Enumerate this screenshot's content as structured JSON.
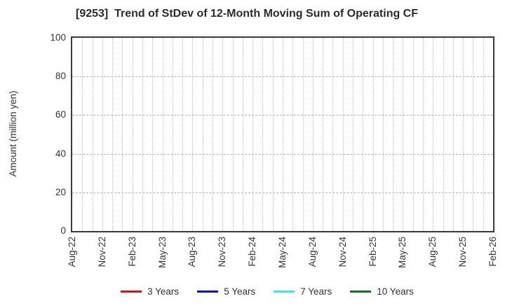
{
  "title": "[9253]  Trend of StDev of 12-Month Moving Sum of Operating CF",
  "y_axis": {
    "label": "Amount (million yen)",
    "ticks": [
      0,
      20,
      40,
      60,
      80,
      100
    ]
  },
  "x_axis": {
    "tick_labels": [
      "Aug-22",
      "Nov-22",
      "Feb-23",
      "May-23",
      "Aug-23",
      "Nov-23",
      "Feb-24",
      "May-24",
      "Aug-24",
      "Nov-24",
      "Feb-25",
      "May-25",
      "Aug-25",
      "Nov-25",
      "Feb-26"
    ]
  },
  "legend": {
    "items": [
      {
        "label": "3 Years",
        "color": "#ff0000"
      },
      {
        "label": "5 Years",
        "color": "#0000ff"
      },
      {
        "label": "7 Years",
        "color": "#00ffff"
      },
      {
        "label": "10 Years",
        "color": "#008000"
      }
    ]
  },
  "chart_data": {
    "type": "line",
    "title": "[9253]  Trend of StDev of 12-Month Moving Sum of Operating CF",
    "xlabel": "",
    "ylabel": "Amount (million yen)",
    "ylim": [
      0,
      100
    ],
    "y_ticks": [
      0,
      20,
      40,
      60,
      80,
      100
    ],
    "x_tick_labels": [
      "Aug-22",
      "Nov-22",
      "Feb-23",
      "May-23",
      "Aug-23",
      "Nov-23",
      "Feb-24",
      "May-24",
      "Aug-24",
      "Nov-24",
      "Feb-25",
      "May-25",
      "Aug-25",
      "Nov-25",
      "Feb-26"
    ],
    "x_minor_divisions": 42,
    "x_ticks_per_label": 3,
    "grid": true,
    "legend_position": "bottom",
    "series": [
      {
        "name": "3 Years",
        "color": "#ff0000",
        "values": []
      },
      {
        "name": "5 Years",
        "color": "#0000ff",
        "values": []
      },
      {
        "name": "7 Years",
        "color": "#00ffff",
        "values": []
      },
      {
        "name": "10 Years",
        "color": "#008000",
        "values": []
      }
    ]
  }
}
